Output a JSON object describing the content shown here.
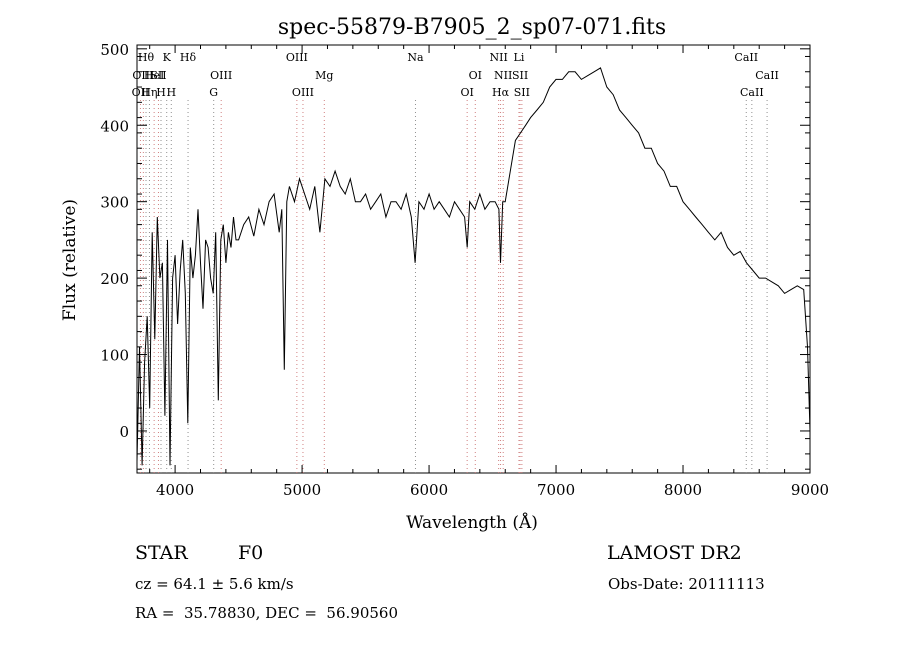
{
  "chart_data": {
    "type": "line",
    "title": "spec-55879-B7905_2_sp07-071.fits",
    "xlabel": "Wavelength (Å)",
    "ylabel": "Flux (relative)",
    "xlim": [
      3700,
      9000
    ],
    "ylim": [
      -55,
      505
    ],
    "grid": false,
    "xticks": [
      4000,
      5000,
      6000,
      7000,
      8000,
      9000
    ],
    "yticks": [
      0,
      100,
      200,
      300,
      400,
      500
    ],
    "series": [
      {
        "x": [
          3700,
          3720,
          3740,
          3760,
          3780,
          3800,
          3820,
          3840,
          3860,
          3880,
          3900,
          3920,
          3940,
          3960,
          3980,
          4000,
          4020,
          4040,
          4060,
          4080,
          4100,
          4120,
          4140,
          4160,
          4180,
          4200,
          4220,
          4240,
          4260,
          4280,
          4300,
          4320,
          4340,
          4360,
          4380,
          4400,
          4420,
          4440,
          4460,
          4480,
          4500,
          4540,
          4580,
          4620,
          4660,
          4700,
          4740,
          4780,
          4820,
          4840,
          4860,
          4880,
          4900,
          4940,
          4980,
          5020,
          5060,
          5100,
          5140,
          5180,
          5220,
          5260,
          5300,
          5340,
          5380,
          5420,
          5460,
          5500,
          5540,
          5580,
          5620,
          5660,
          5700,
          5740,
          5780,
          5820,
          5860,
          5890,
          5920,
          5960,
          6000,
          6040,
          6080,
          6120,
          6160,
          6200,
          6240,
          6280,
          6300,
          6320,
          6360,
          6400,
          6440,
          6480,
          6520,
          6550,
          6563,
          6580,
          6600,
          6640,
          6680,
          6720,
          6760,
          6800,
          6850,
          6900,
          6950,
          7000,
          7050,
          7100,
          7150,
          7200,
          7250,
          7300,
          7350,
          7400,
          7450,
          7500,
          7550,
          7600,
          7650,
          7700,
          7750,
          7800,
          7850,
          7900,
          7950,
          8000,
          8050,
          8100,
          8150,
          8200,
          8250,
          8300,
          8350,
          8400,
          8450,
          8500,
          8550,
          8600,
          8650,
          8700,
          8750,
          8800,
          8850,
          8900,
          8950,
          8980,
          9000
        ],
        "y": [
          -40,
          110,
          -45,
          90,
          150,
          30,
          260,
          120,
          280,
          200,
          220,
          20,
          250,
          -45,
          200,
          230,
          140,
          210,
          250,
          180,
          10,
          240,
          200,
          230,
          290,
          220,
          160,
          250,
          240,
          200,
          180,
          260,
          40,
          250,
          270,
          220,
          260,
          240,
          280,
          250,
          250,
          270,
          280,
          255,
          290,
          270,
          300,
          310,
          260,
          290,
          80,
          300,
          320,
          300,
          330,
          310,
          290,
          320,
          260,
          330,
          320,
          340,
          320,
          310,
          330,
          300,
          300,
          310,
          290,
          300,
          310,
          280,
          300,
          300,
          290,
          310,
          280,
          220,
          300,
          290,
          310,
          290,
          300,
          290,
          280,
          300,
          290,
          280,
          240,
          300,
          290,
          310,
          290,
          300,
          300,
          290,
          220,
          300,
          300,
          340,
          380,
          390,
          400,
          410,
          420,
          430,
          450,
          460,
          460,
          470,
          470,
          460,
          465,
          470,
          475,
          450,
          440,
          420,
          410,
          400,
          390,
          370,
          370,
          350,
          340,
          320,
          320,
          300,
          290,
          280,
          270,
          260,
          250,
          260,
          240,
          230,
          235,
          220,
          210,
          200,
          200,
          195,
          190,
          180,
          185,
          190,
          185,
          110,
          0
        ]
      }
    ],
    "line_markers": [
      {
        "x": 3727,
        "label": "OII",
        "row": 2
      },
      {
        "x": 3750,
        "label": "OIII",
        "row": 1
      },
      {
        "x": 3771,
        "label": "Hθ",
        "row": 0
      },
      {
        "x": 3798,
        "label": "Hη",
        "row": 2
      },
      {
        "x": 3835,
        "label": "HeI",
        "row": 1
      },
      {
        "x": 3869,
        "label": "SII",
        "row": 1
      },
      {
        "x": 3889,
        "label": "H",
        "row": 2
      },
      {
        "x": 3934,
        "label": "K",
        "row": 0
      },
      {
        "x": 3970,
        "label": "H",
        "row": 2
      },
      {
        "x": 4102,
        "label": "Hδ",
        "row": 0
      },
      {
        "x": 4304,
        "label": "G",
        "row": 2
      },
      {
        "x": 4363,
        "label": "OIII",
        "row": 1
      },
      {
        "x": 4959,
        "label": "OIII",
        "row": 0
      },
      {
        "x": 5007,
        "label": "OIII",
        "row": 2
      },
      {
        "x": 5175,
        "label": "Mg",
        "row": 1
      },
      {
        "x": 5893,
        "label": "Na",
        "row": 0
      },
      {
        "x": 6300,
        "label": "OI",
        "row": 2
      },
      {
        "x": 6364,
        "label": "OI",
        "row": 1
      },
      {
        "x": 6548,
        "label": "NII",
        "row": 0
      },
      {
        "x": 6563,
        "label": "Hα",
        "row": 2
      },
      {
        "x": 6584,
        "label": "NII",
        "row": 1
      },
      {
        "x": 6708,
        "label": "Li",
        "row": 0
      },
      {
        "x": 6717,
        "label": "SII",
        "row": 1
      },
      {
        "x": 6731,
        "label": "SII",
        "row": 2
      },
      {
        "x": 8498,
        "label": "CaII",
        "row": 0
      },
      {
        "x": 8542,
        "label": "CaII",
        "row": 2
      },
      {
        "x": 8662,
        "label": "CaII",
        "row": 1
      }
    ]
  },
  "footer": {
    "class_label": "STAR",
    "subclass_label": "F0",
    "survey": "LAMOST DR2",
    "cz": "cz = 64.1 ± 5.6 km/s",
    "obs_date": "Obs-Date: 20111113",
    "coords": "RA =  35.78830, DEC =  56.90560"
  },
  "colors": {
    "axes": "#000000",
    "spectrum": "#000000",
    "emission_marker": "#d08080",
    "absorption_marker": "#909090"
  }
}
